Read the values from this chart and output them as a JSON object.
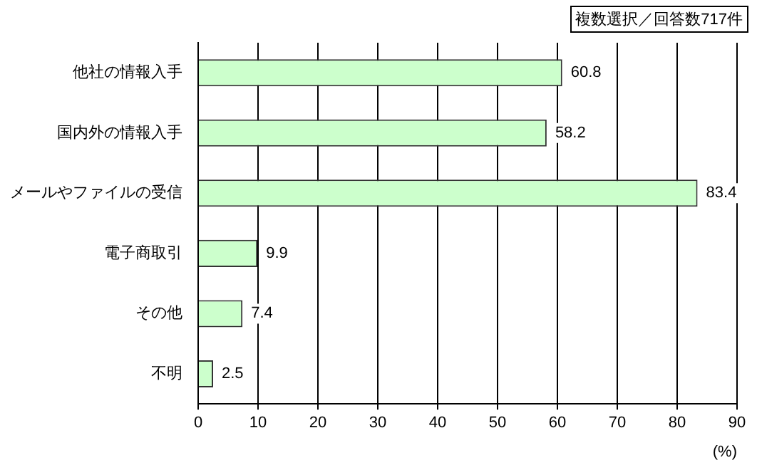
{
  "chart_data": {
    "type": "bar",
    "orientation": "horizontal",
    "categories": [
      "他社の情報入手",
      "国内外の情報入手",
      "メールやファイルの受信",
      "電子商取引",
      "その他",
      "不明"
    ],
    "values": [
      60.8,
      58.2,
      83.4,
      9.9,
      7.4,
      2.5
    ],
    "color": "#ccffcc",
    "xlim": [
      0,
      90
    ],
    "xticks": [
      0,
      10,
      20,
      30,
      40,
      50,
      60,
      70,
      80,
      90
    ],
    "xlabel": "(%)",
    "grid": "x",
    "data_labels": true,
    "annotations": [
      "複数選択／回答数717件"
    ]
  }
}
